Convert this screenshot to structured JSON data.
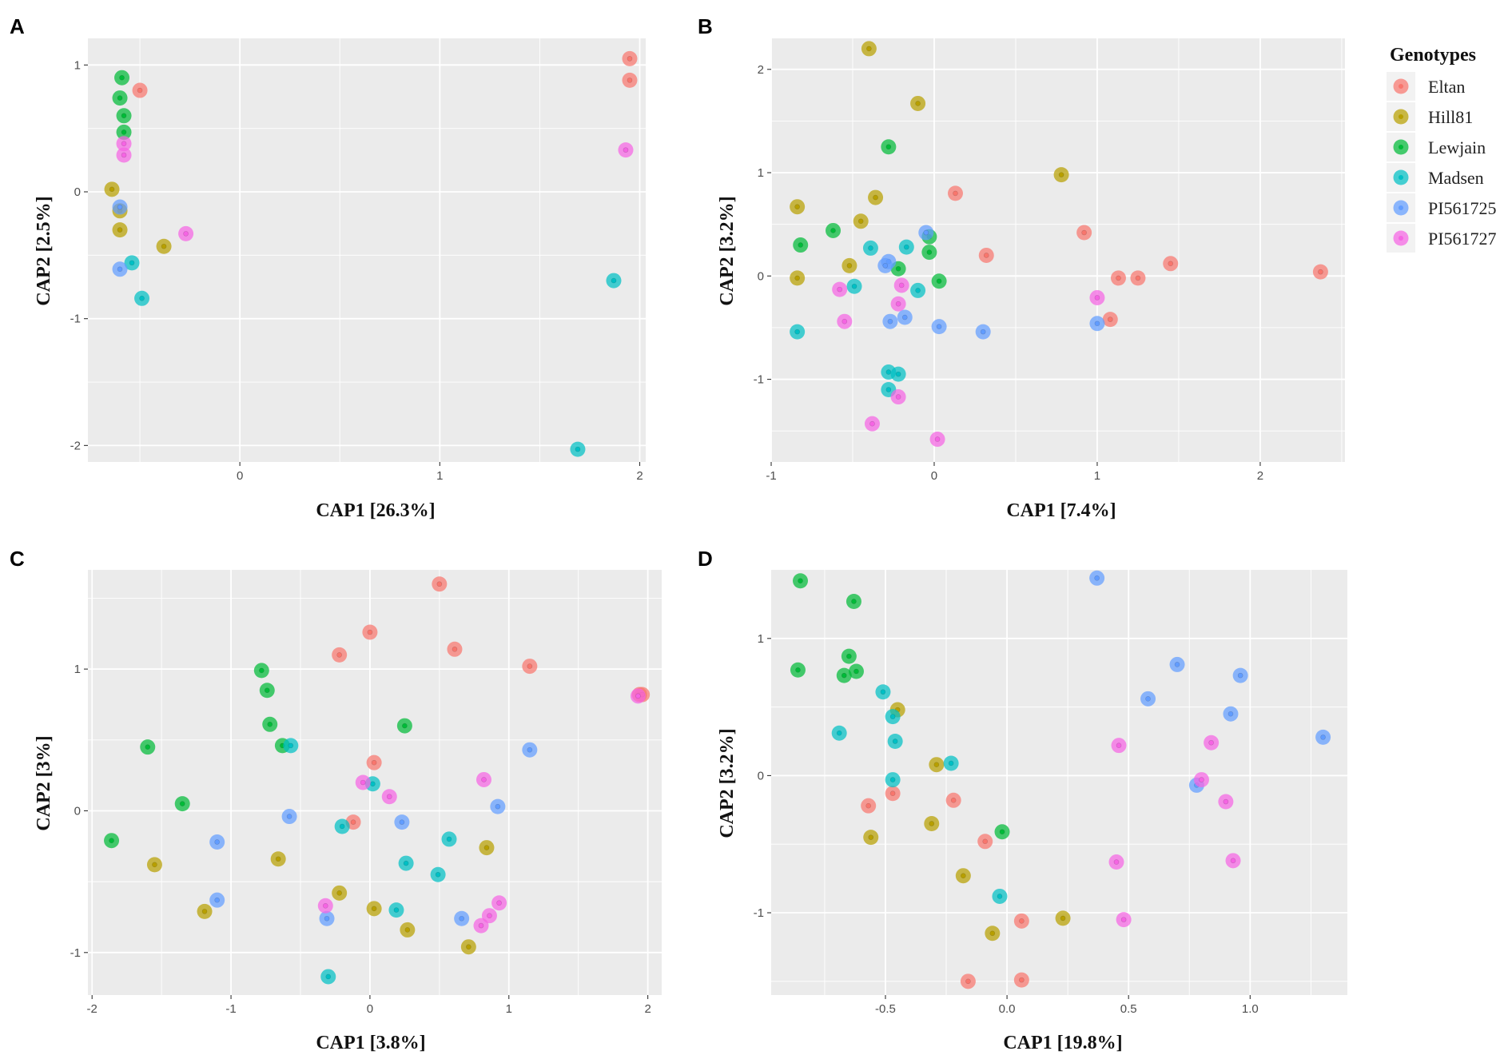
{
  "legend": {
    "title": "Genotypes",
    "items": [
      {
        "name": "Eltan",
        "color": "#F8766D"
      },
      {
        "name": "Hill81",
        "color": "#B79F00"
      },
      {
        "name": "Lewjain",
        "color": "#00BA38"
      },
      {
        "name": "Madsen",
        "color": "#00BFC4"
      },
      {
        "name": "PI561725",
        "color": "#619CFF"
      },
      {
        "name": "PI561727",
        "color": "#F564E3"
      }
    ]
  },
  "chart_data": [
    {
      "panel": "A",
      "type": "scatter",
      "xlabel": "CAP1 [26.3%]",
      "ylabel": "CAP2 [2.5%]",
      "xlim": [
        -0.76,
        2.03
      ],
      "ylim": [
        -2.13,
        1.21
      ],
      "xticks": [
        0,
        1,
        2
      ],
      "xtick_labels": [
        "0",
        "1",
        "2"
      ],
      "yticks": [
        -2,
        -1,
        0,
        1
      ],
      "ytick_labels": [
        "-2",
        "-1",
        "0",
        "1"
      ],
      "series": [
        {
          "name": "Eltan",
          "points": [
            [
              -0.5,
              0.8
            ],
            [
              1.95,
              1.05
            ],
            [
              1.95,
              0.88
            ]
          ]
        },
        {
          "name": "Hill81",
          "points": [
            [
              -0.64,
              0.02
            ],
            [
              -0.6,
              -0.15
            ],
            [
              -0.6,
              -0.3
            ],
            [
              -0.38,
              -0.43
            ]
          ]
        },
        {
          "name": "Lewjain",
          "points": [
            [
              -0.59,
              0.9
            ],
            [
              -0.6,
              0.74
            ],
            [
              -0.58,
              0.6
            ],
            [
              -0.58,
              0.47
            ]
          ]
        },
        {
          "name": "Madsen",
          "points": [
            [
              -0.54,
              -0.56
            ],
            [
              -0.49,
              -0.84
            ],
            [
              1.87,
              -0.7
            ],
            [
              1.69,
              -2.03
            ]
          ]
        },
        {
          "name": "PI561725",
          "points": [
            [
              -0.6,
              -0.12
            ],
            [
              -0.6,
              -0.61
            ]
          ]
        },
        {
          "name": "PI561727",
          "points": [
            [
              -0.58,
              0.38
            ],
            [
              -0.58,
              0.29
            ],
            [
              -0.27,
              -0.33
            ],
            [
              1.93,
              0.33
            ]
          ]
        }
      ]
    },
    {
      "panel": "B",
      "type": "scatter",
      "xlabel": "CAP1 [7.4%]",
      "ylabel": "CAP2 [3.2%]",
      "xlim": [
        -1.0,
        2.52
      ],
      "ylim": [
        -1.8,
        2.3
      ],
      "xticks": [
        -1,
        0,
        1,
        2
      ],
      "xtick_labels": [
        "-1",
        "0",
        "1",
        "2"
      ],
      "yticks": [
        -1,
        0,
        1,
        2
      ],
      "ytick_labels": [
        "-1",
        "0",
        "1",
        "2"
      ],
      "series": [
        {
          "name": "Eltan",
          "points": [
            [
              0.13,
              0.8
            ],
            [
              0.32,
              0.2
            ],
            [
              0.92,
              0.42
            ],
            [
              1.08,
              -0.42
            ],
            [
              1.13,
              -0.02
            ],
            [
              1.25,
              -0.02
            ],
            [
              1.45,
              0.12
            ],
            [
              2.37,
              0.04
            ]
          ]
        },
        {
          "name": "Hill81",
          "points": [
            [
              -0.4,
              2.2
            ],
            [
              -0.1,
              1.67
            ],
            [
              0.78,
              0.98
            ],
            [
              -0.84,
              0.67
            ],
            [
              -0.45,
              0.53
            ],
            [
              -0.36,
              0.76
            ],
            [
              -0.52,
              0.1
            ],
            [
              -0.84,
              -0.02
            ]
          ]
        },
        {
          "name": "Lewjain",
          "points": [
            [
              -0.28,
              1.25
            ],
            [
              -0.62,
              0.44
            ],
            [
              -0.82,
              0.3
            ],
            [
              -0.22,
              0.07
            ],
            [
              -0.03,
              0.38
            ],
            [
              -0.03,
              0.23
            ],
            [
              0.03,
              -0.05
            ]
          ]
        },
        {
          "name": "Madsen",
          "points": [
            [
              -0.39,
              0.27
            ],
            [
              -0.49,
              -0.1
            ],
            [
              -0.17,
              0.28
            ],
            [
              -0.1,
              -0.14
            ],
            [
              -0.84,
              -0.54
            ],
            [
              -0.28,
              -0.93
            ],
            [
              -0.22,
              -0.95
            ],
            [
              -0.28,
              -1.1
            ]
          ]
        },
        {
          "name": "PI561725",
          "points": [
            [
              -0.05,
              0.42
            ],
            [
              -0.28,
              0.14
            ],
            [
              -0.3,
              0.1
            ],
            [
              -0.27,
              -0.44
            ],
            [
              -0.18,
              -0.4
            ],
            [
              0.03,
              -0.49
            ],
            [
              0.3,
              -0.54
            ],
            [
              1.0,
              -0.46
            ]
          ]
        },
        {
          "name": "PI561727",
          "points": [
            [
              -0.58,
              -0.13
            ],
            [
              -0.55,
              -0.44
            ],
            [
              -0.2,
              -0.09
            ],
            [
              -0.22,
              -0.27
            ],
            [
              -0.22,
              -1.17
            ],
            [
              -0.38,
              -1.43
            ],
            [
              0.02,
              -1.58
            ],
            [
              1.0,
              -0.21
            ]
          ]
        }
      ]
    },
    {
      "panel": "C",
      "type": "scatter",
      "xlabel": "CAP1 [3.8%]",
      "ylabel": "CAP2 [3%]",
      "xlim": [
        -2.03,
        2.1
      ],
      "ylim": [
        -1.3,
        1.7
      ],
      "xticks": [
        -2,
        -1,
        0,
        1,
        2
      ],
      "xtick_labels": [
        "-2",
        "-1",
        "0",
        "1",
        "2"
      ],
      "yticks": [
        -1,
        0,
        1
      ],
      "ytick_labels": [
        "-1",
        "0",
        "1"
      ],
      "series": [
        {
          "name": "Eltan",
          "points": [
            [
              0.5,
              1.6
            ],
            [
              0.0,
              1.26
            ],
            [
              -0.22,
              1.1
            ],
            [
              0.61,
              1.14
            ],
            [
              1.15,
              1.02
            ],
            [
              1.94,
              0.82
            ],
            [
              1.96,
              0.82
            ],
            [
              0.03,
              0.34
            ],
            [
              -0.12,
              -0.08
            ]
          ]
        },
        {
          "name": "Hill81",
          "points": [
            [
              -1.55,
              -0.38
            ],
            [
              -1.19,
              -0.71
            ],
            [
              -0.66,
              -0.34
            ],
            [
              -0.22,
              -0.58
            ],
            [
              0.03,
              -0.69
            ],
            [
              0.27,
              -0.84
            ],
            [
              0.71,
              -0.96
            ],
            [
              0.84,
              -0.26
            ]
          ]
        },
        {
          "name": "Lewjain",
          "points": [
            [
              -0.78,
              0.99
            ],
            [
              -0.74,
              0.85
            ],
            [
              -0.72,
              0.61
            ],
            [
              -0.63,
              0.46
            ],
            [
              0.25,
              0.6
            ],
            [
              -1.6,
              0.45
            ],
            [
              -1.35,
              0.05
            ],
            [
              -1.86,
              -0.21
            ]
          ]
        },
        {
          "name": "Madsen",
          "points": [
            [
              -0.57,
              0.46
            ],
            [
              0.02,
              0.19
            ],
            [
              -0.2,
              -0.11
            ],
            [
              0.57,
              -0.2
            ],
            [
              0.26,
              -0.37
            ],
            [
              0.49,
              -0.45
            ],
            [
              0.19,
              -0.7
            ],
            [
              -0.3,
              -1.17
            ]
          ]
        },
        {
          "name": "PI561725",
          "points": [
            [
              1.15,
              0.43
            ],
            [
              0.92,
              0.03
            ],
            [
              0.23,
              -0.08
            ],
            [
              -0.58,
              -0.04
            ],
            [
              -1.1,
              -0.22
            ],
            [
              -1.1,
              -0.63
            ],
            [
              -0.31,
              -0.76
            ],
            [
              0.66,
              -0.76
            ]
          ]
        },
        {
          "name": "PI561727",
          "points": [
            [
              0.82,
              0.22
            ],
            [
              -0.05,
              0.2
            ],
            [
              0.14,
              0.1
            ],
            [
              -0.32,
              -0.67
            ],
            [
              0.93,
              -0.65
            ],
            [
              0.86,
              -0.74
            ],
            [
              0.8,
              -0.81
            ],
            [
              1.93,
              0.81
            ]
          ]
        }
      ]
    },
    {
      "panel": "D",
      "type": "scatter",
      "xlabel": "CAP1 [19.8%]",
      "ylabel": "CAP2 [3.2%]",
      "xlim": [
        -0.97,
        1.4
      ],
      "ylim": [
        -1.6,
        1.5
      ],
      "xticks": [
        -0.5,
        0.0,
        0.5,
        1.0
      ],
      "xtick_labels": [
        "-0.5",
        "0.0",
        "0.5",
        "1.0"
      ],
      "yticks": [
        -1,
        0,
        1
      ],
      "ytick_labels": [
        "-1",
        "0",
        "1"
      ],
      "series": [
        {
          "name": "Eltan",
          "points": [
            [
              -0.57,
              -0.22
            ],
            [
              -0.47,
              -0.13
            ],
            [
              -0.22,
              -0.18
            ],
            [
              -0.09,
              -0.48
            ],
            [
              0.06,
              -1.06
            ],
            [
              -0.16,
              -1.5
            ],
            [
              0.06,
              -1.49
            ]
          ]
        },
        {
          "name": "Hill81",
          "points": [
            [
              -0.45,
              0.48
            ],
            [
              -0.29,
              0.08
            ],
            [
              -0.31,
              -0.35
            ],
            [
              -0.56,
              -0.45
            ],
            [
              -0.18,
              -0.73
            ],
            [
              -0.06,
              -1.15
            ],
            [
              0.23,
              -1.04
            ]
          ]
        },
        {
          "name": "Lewjain",
          "points": [
            [
              -0.85,
              1.42
            ],
            [
              -0.63,
              1.27
            ],
            [
              -0.86,
              0.77
            ],
            [
              -0.65,
              0.87
            ],
            [
              -0.62,
              0.76
            ],
            [
              -0.67,
              0.73
            ],
            [
              -0.02,
              -0.41
            ]
          ]
        },
        {
          "name": "Madsen",
          "points": [
            [
              -0.51,
              0.61
            ],
            [
              -0.47,
              0.43
            ],
            [
              -0.46,
              0.25
            ],
            [
              -0.47,
              -0.03
            ],
            [
              -0.23,
              0.09
            ],
            [
              -0.69,
              0.31
            ],
            [
              -0.03,
              -0.88
            ]
          ]
        },
        {
          "name": "PI561725",
          "points": [
            [
              0.37,
              1.44
            ],
            [
              0.7,
              0.81
            ],
            [
              0.58,
              0.56
            ],
            [
              0.96,
              0.73
            ],
            [
              0.92,
              0.45
            ],
            [
              1.3,
              0.28
            ],
            [
              0.78,
              -0.07
            ]
          ]
        },
        {
          "name": "PI561727",
          "points": [
            [
              0.46,
              0.22
            ],
            [
              0.84,
              0.24
            ],
            [
              0.8,
              -0.03
            ],
            [
              0.9,
              -0.19
            ],
            [
              0.45,
              -0.63
            ],
            [
              0.48,
              -1.05
            ],
            [
              0.93,
              -0.62
            ]
          ]
        }
      ]
    }
  ]
}
